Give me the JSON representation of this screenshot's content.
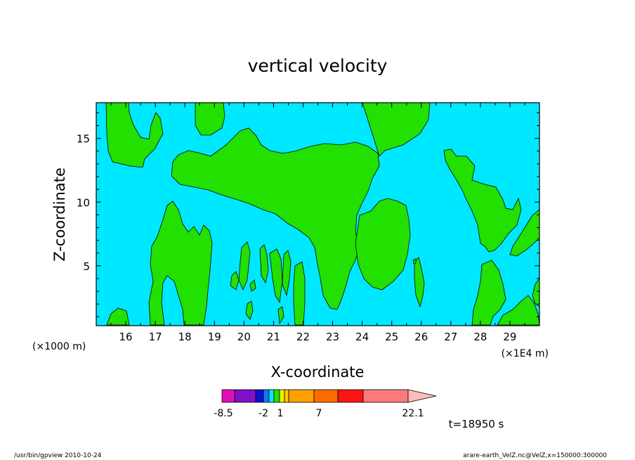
{
  "colors": {
    "background_field": "#00e8ff",
    "positive_field": "#22e000",
    "colorbar": [
      "#e010b8",
      "#8010c8",
      "#1010d0",
      "#1078ff",
      "#00e8ff",
      "#22e000",
      "#e8f000",
      "#ffc800",
      "#ffa000",
      "#ff6a00",
      "#ff1414",
      "#ff7b7b",
      "#ffbcbc"
    ]
  },
  "chart_data": {
    "type": "contour-fill",
    "title": "vertical velocity",
    "xlabel": "X-coordinate",
    "ylabel": "Z-coordinate",
    "x_unit_label": "(×1E4 m)",
    "y_unit_label": "(×1000 m)",
    "x_ticks": [
      16,
      17,
      18,
      19,
      20,
      21,
      22,
      23,
      24,
      25,
      26,
      27,
      28,
      29
    ],
    "y_ticks": [
      5,
      10,
      15
    ],
    "xlim": [
      15,
      30
    ],
    "ylim": [
      0.3,
      17.8
    ],
    "colorbar_labels": [
      "-8.5",
      "-2",
      "1",
      "7",
      "22.1"
    ],
    "time_label": "t=18950 s"
  },
  "footer": {
    "left": "/usr/bin/gpview  2010-10-24",
    "right": "arare-earth_VelZ.nc@VelZ,x=150000:300000"
  }
}
